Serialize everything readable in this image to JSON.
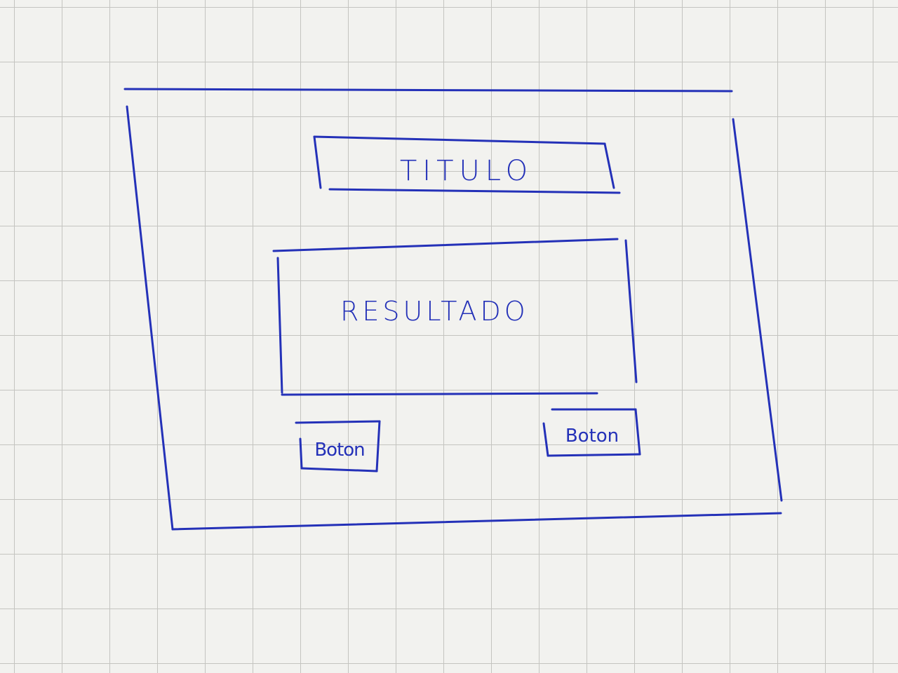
{
  "window": {
    "title": "TITULO",
    "result_text": "RESULTADO"
  },
  "buttons": {
    "left_label": "Boton",
    "right_label": "Boton"
  },
  "colors": {
    "ink": "#2431b8",
    "paper": "#f2f2ef",
    "grid": "#c4c4c0"
  }
}
